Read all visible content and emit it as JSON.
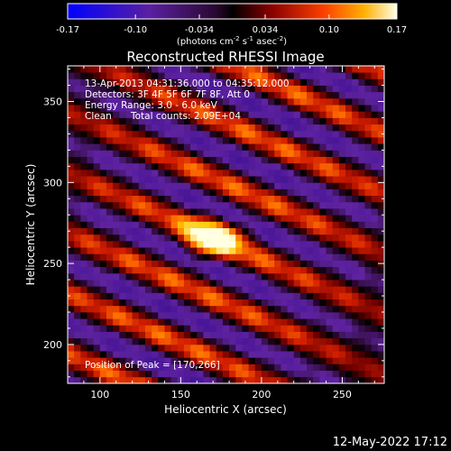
{
  "colorbar": {
    "ticks": [
      "-0.17",
      "-0.10",
      "-0.034",
      "0.034",
      "0.10",
      "0.17"
    ],
    "tick_values": [
      -0.17,
      -0.1,
      -0.034,
      0.034,
      0.1,
      0.17
    ],
    "range": [
      -0.17,
      0.17
    ],
    "unit_text": "(photons cm",
    "unit_sup1": "-2",
    "unit_mid": " s",
    "unit_sup2": "-1",
    "unit_end": " asec",
    "unit_sup3": "-2",
    "unit_close": ")"
  },
  "title": "Reconstructed RHESSI Image",
  "overlay": {
    "line1": "13-Apr-2013 04:31:36.000 to 04:35:12.000",
    "line2": "Detectors: 3F 4F 5F 6F 7F 8F, Att 0",
    "line3": "Energy Range: 3.0 - 6.0 keV",
    "line4_a": "Clean",
    "line4_b": "Total counts: 2.09E+04",
    "peak": "Position of Peak = [170,266]"
  },
  "peak_position": [
    170,
    266
  ],
  "axes": {
    "xlabel": "Heliocentric X (arcsec)",
    "ylabel": "Heliocentric Y (arcsec)",
    "xlim": [
      80,
      276
    ],
    "ylim": [
      176,
      372
    ],
    "xticks": [
      "100",
      "150",
      "200",
      "250"
    ],
    "xtick_values": [
      100,
      150,
      200,
      250
    ],
    "yticks": [
      "200",
      "250",
      "300",
      "350"
    ],
    "ytick_values": [
      200,
      250,
      300,
      350
    ]
  },
  "footer_date": "12-May-2022 17:12",
  "colors": {
    "background": "#000000",
    "text": "#ffffff",
    "colormap": [
      "#0000ff",
      "#3b18a8",
      "#5a1fa0",
      "#000000",
      "#7a0000",
      "#d82000",
      "#ff7000",
      "#ffd000",
      "#ffffe0"
    ]
  }
}
